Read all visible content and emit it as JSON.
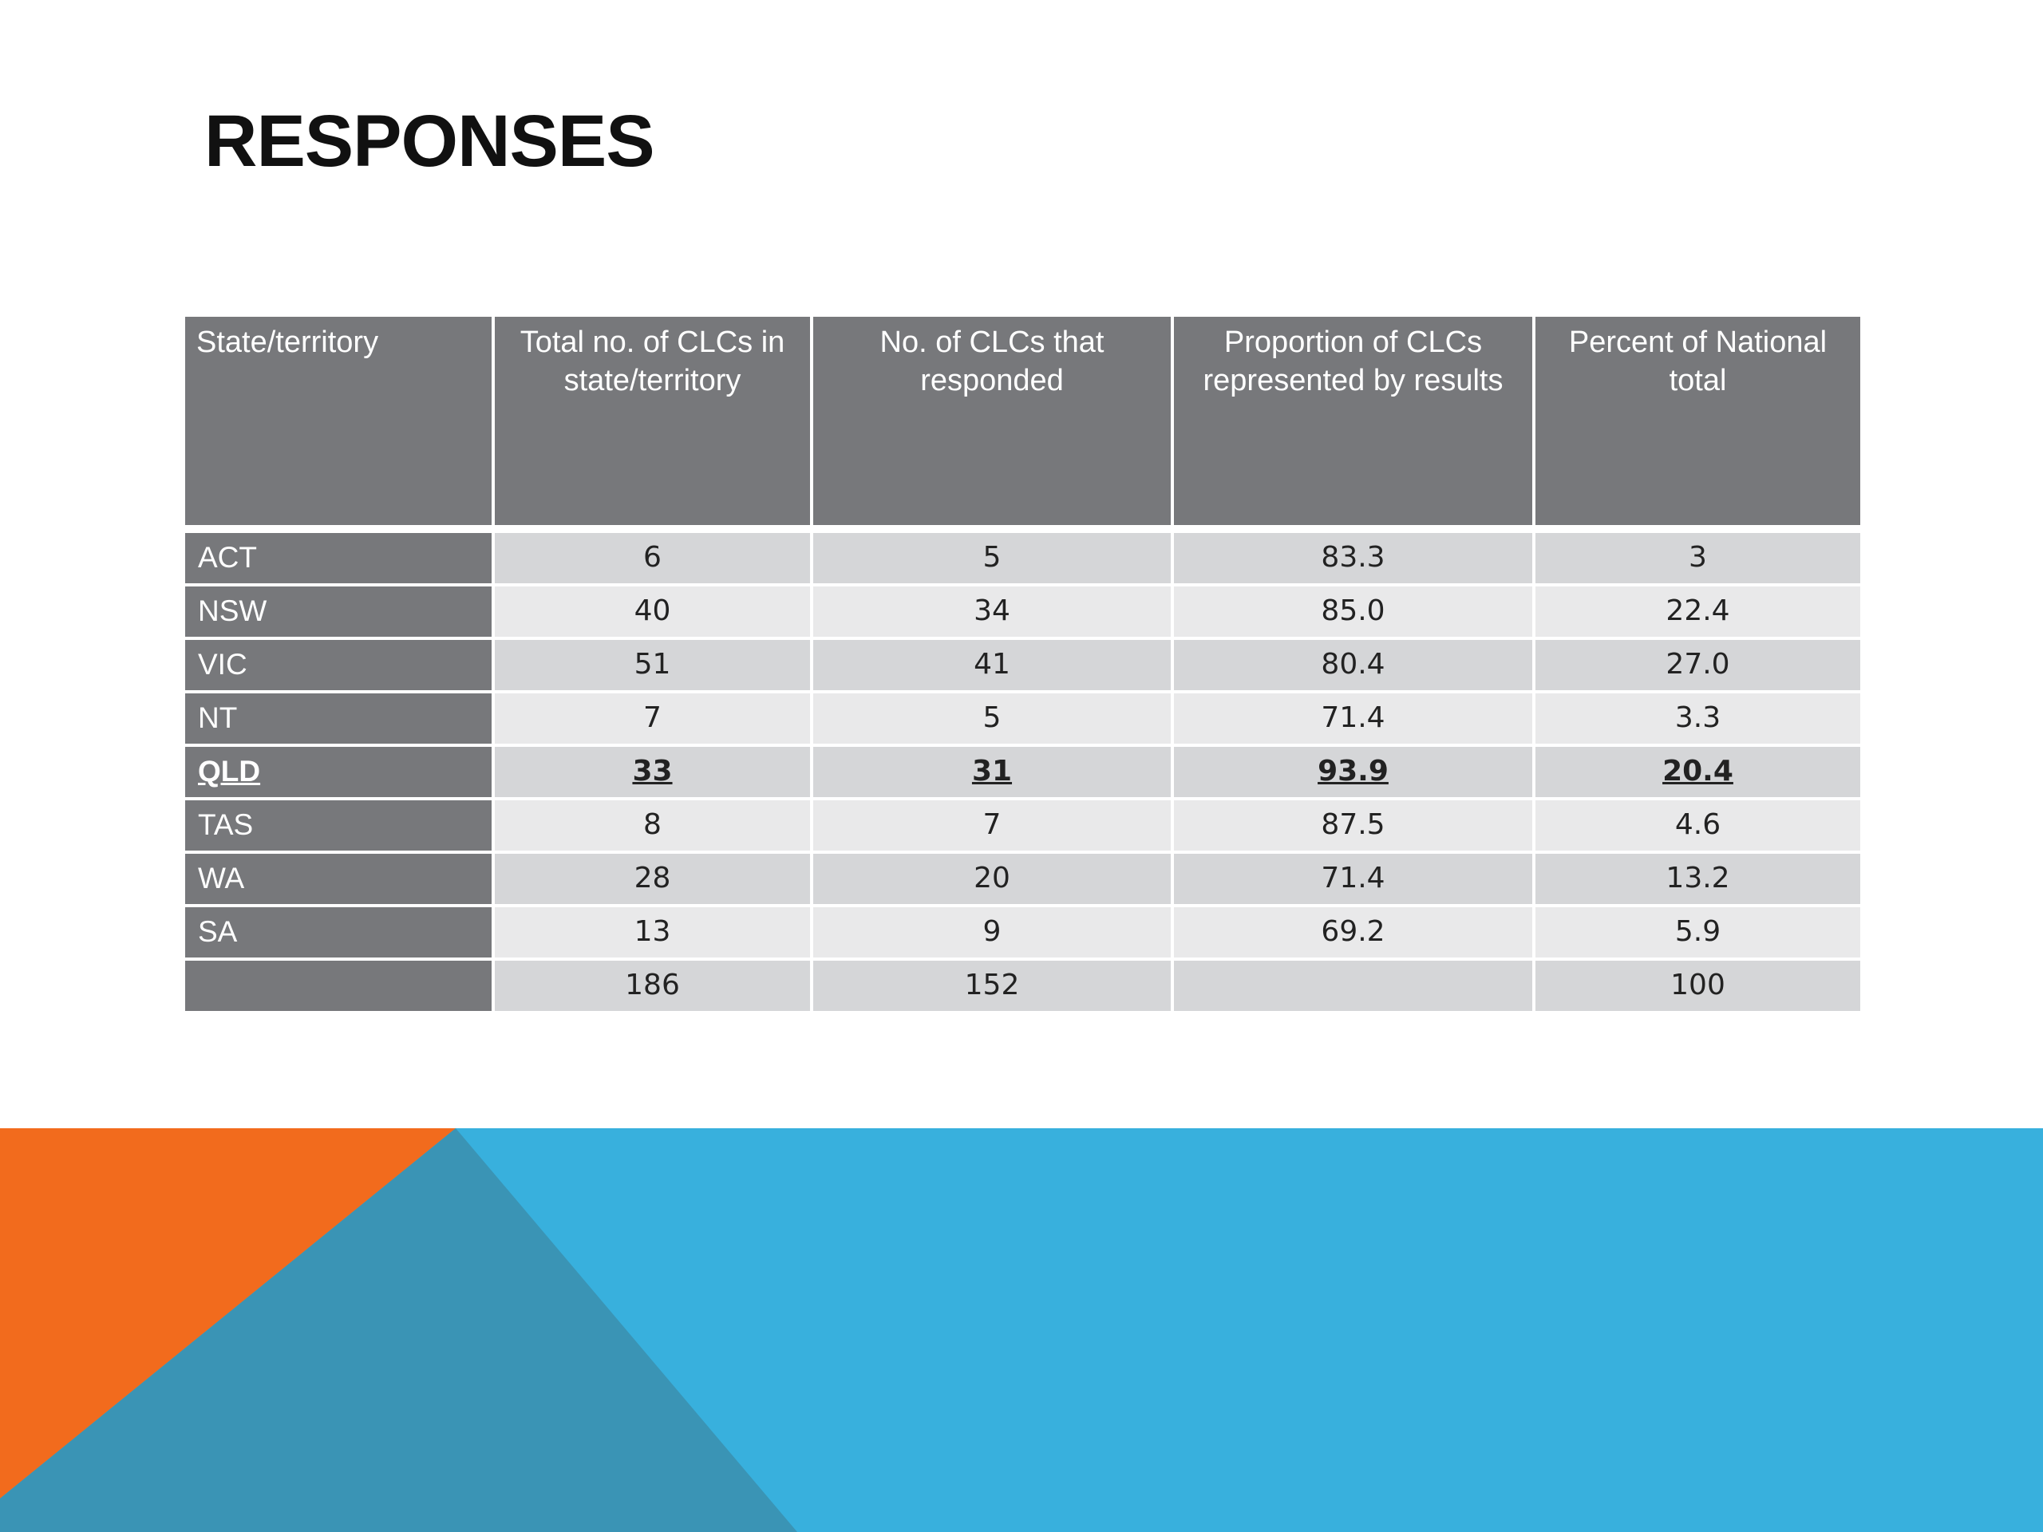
{
  "title": "RESPONSES",
  "table": {
    "header": [
      "State/territory",
      "Total no. of CLCs in state/territory",
      "No. of CLCs that responded",
      "Proportion of CLCs represented by results",
      "Percent of National total"
    ],
    "rows": [
      [
        "ACT",
        "6",
        "5",
        "83.3",
        "3"
      ],
      [
        "NSW",
        "40",
        "34",
        "85.0",
        "22.4"
      ],
      [
        "VIC",
        "51",
        "41",
        "80.4",
        "27.0"
      ],
      [
        "NT",
        "7",
        "5",
        "71.4",
        "3.3"
      ],
      [
        "QLD",
        "33",
        "31",
        "93.9",
        "20.4"
      ],
      [
        "TAS",
        "8",
        "7",
        "87.5",
        "4.6"
      ],
      [
        "WA",
        "28",
        "20",
        "71.4",
        "13.2"
      ],
      [
        "SA",
        "13",
        "9",
        "69.2",
        "5.9"
      ],
      [
        null,
        "186",
        "152",
        null,
        "100"
      ]
    ],
    "emphasized_row": 4
  }
}
